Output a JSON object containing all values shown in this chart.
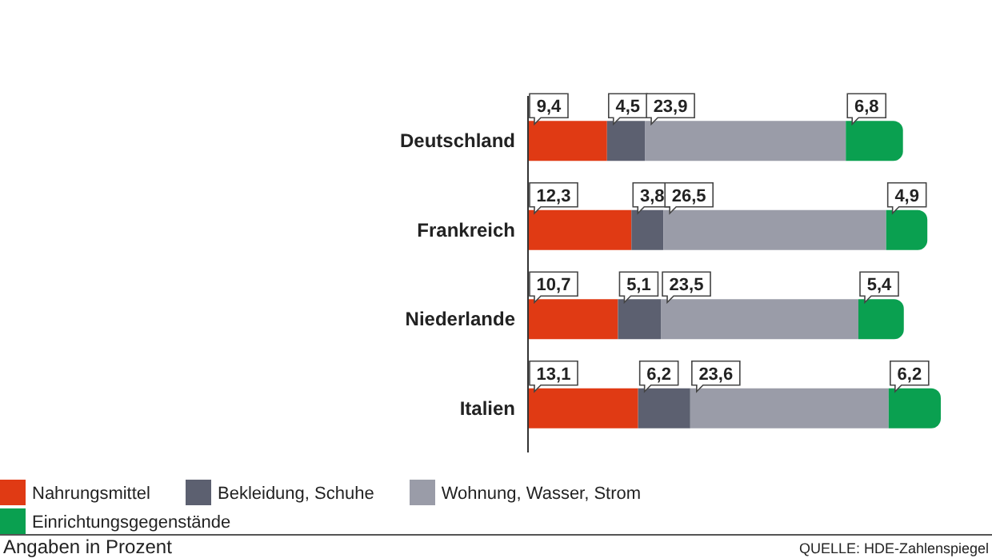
{
  "chart_data": {
    "type": "bar",
    "orientation": "horizontal",
    "stacked": true,
    "legend": "bottom",
    "grid": false,
    "categories": [
      "Deutschland",
      "Frankreich",
      "Niederlande",
      "Italien"
    ],
    "series": [
      {
        "name": "Nahrungsmittel",
        "color": "#e03a14",
        "values": [
          9.4,
          12.3,
          10.7,
          13.1
        ],
        "value_labels": [
          "9,4",
          "12,3",
          "10,7",
          "13,1"
        ]
      },
      {
        "name": "Bekleidung, Schuhe",
        "color": "#5c6070",
        "values": [
          4.5,
          3.8,
          5.1,
          6.2
        ],
        "value_labels": [
          "4,5",
          "3,8",
          "5,1",
          "6,2"
        ]
      },
      {
        "name": "Wohnung, Wasser, Strom",
        "color": "#9a9ca8",
        "values": [
          23.9,
          26.5,
          23.5,
          23.6
        ],
        "value_labels": [
          "23,9",
          "26,5",
          "23,5",
          "23,6"
        ]
      },
      {
        "name": "Einrichtungsgegenstände",
        "color": "#0aa050",
        "values": [
          6.8,
          4.9,
          5.4,
          6.2
        ],
        "value_labels": [
          "6,8",
          "4,9",
          "5,4",
          "6,2"
        ]
      }
    ],
    "annotations": [
      "Angaben in Prozent",
      "QUELLE: HDE-Zahlenspiegel"
    ]
  }
}
